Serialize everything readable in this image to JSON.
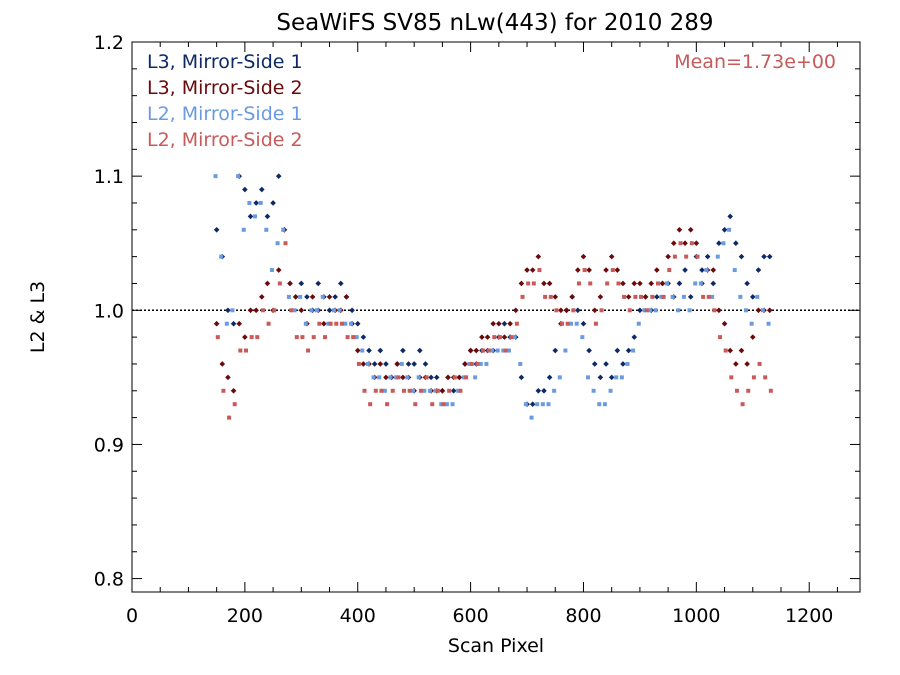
{
  "chart_data": {
    "type": "scatter",
    "title": "SeaWiFS SV85 nLw(443) for 2010 289",
    "xlabel": "Scan Pixel",
    "ylabel": "L2 & L3",
    "xlim": [
      0,
      1290
    ],
    "ylim": [
      0.79,
      1.2
    ],
    "xticks": [
      0,
      200,
      400,
      600,
      800,
      1000,
      1200
    ],
    "xtick_labels": [
      "0",
      "200",
      "400",
      "600",
      "800",
      "1000",
      "1200"
    ],
    "yticks": [
      0.8,
      0.9,
      1.0,
      1.1,
      1.2
    ],
    "ytick_labels": [
      "0.8",
      "0.9",
      "1.0",
      "1.1",
      "1.2"
    ],
    "reference_line": 1.0,
    "grid": false,
    "legend_position": "top-left",
    "annotation": "Mean=1.73e+00",
    "annotation_color": "#c85a5a",
    "series": [
      {
        "name": "L3, Mirror-Side 1",
        "color": "#0d2a66",
        "marker": "diamond",
        "x": [
          150,
          160,
          170,
          180,
          190,
          200,
          210,
          220,
          230,
          240,
          250,
          260,
          270,
          280,
          290,
          300,
          310,
          320,
          330,
          340,
          350,
          360,
          370,
          380,
          390,
          400,
          410,
          420,
          430,
          440,
          450,
          460,
          470,
          480,
          490,
          500,
          510,
          520,
          530,
          540,
          550,
          560,
          570,
          580,
          590,
          600,
          610,
          620,
          630,
          640,
          650,
          660,
          670,
          680,
          690,
          700,
          710,
          720,
          730,
          740,
          750,
          760,
          770,
          780,
          790,
          800,
          810,
          820,
          830,
          840,
          850,
          860,
          870,
          880,
          890,
          900,
          910,
          920,
          930,
          940,
          950,
          960,
          970,
          980,
          990,
          1000,
          1010,
          1020,
          1030,
          1040,
          1050,
          1060,
          1070,
          1080,
          1090,
          1100,
          1110,
          1120,
          1130
        ],
        "y": [
          1.06,
          1.04,
          1.0,
          0.99,
          1.1,
          1.09,
          1.07,
          1.08,
          1.09,
          1.07,
          1.08,
          1.1,
          1.06,
          1.02,
          1.01,
          1.02,
          1.01,
          1.0,
          1.02,
          1.01,
          1.0,
          1.01,
          1.02,
          1.01,
          1.0,
          0.99,
          0.98,
          0.97,
          0.96,
          0.97,
          0.96,
          0.95,
          0.96,
          0.97,
          0.96,
          0.96,
          0.97,
          0.96,
          0.95,
          0.95,
          0.94,
          0.95,
          0.94,
          0.95,
          0.96,
          0.97,
          0.96,
          0.97,
          0.97,
          0.97,
          0.98,
          0.99,
          0.98,
          0.98,
          0.95,
          0.93,
          0.93,
          0.94,
          0.94,
          0.95,
          0.97,
          0.99,
          1.0,
          1.01,
          1.0,
          0.99,
          0.97,
          0.96,
          0.95,
          0.96,
          0.95,
          0.97,
          0.96,
          0.97,
          0.98,
          1.0,
          1.01,
          1.0,
          1.01,
          1.02,
          1.02,
          1.01,
          1.02,
          1.03,
          1.01,
          1.04,
          1.03,
          1.04,
          1.02,
          1.05,
          1.06,
          1.07,
          1.05,
          1.04,
          1.02,
          1.01,
          1.03,
          1.04,
          1.04
        ]
      },
      {
        "name": "L3, Mirror-Side 2",
        "color": "#6b0a0a",
        "marker": "diamond",
        "x": [
          150,
          160,
          170,
          180,
          190,
          200,
          210,
          220,
          230,
          240,
          250,
          260,
          270,
          280,
          290,
          300,
          310,
          320,
          330,
          340,
          350,
          360,
          370,
          380,
          390,
          400,
          410,
          420,
          430,
          440,
          450,
          460,
          470,
          480,
          490,
          500,
          510,
          520,
          530,
          540,
          550,
          560,
          570,
          580,
          590,
          600,
          610,
          620,
          630,
          640,
          650,
          660,
          670,
          680,
          690,
          700,
          710,
          720,
          730,
          740,
          750,
          760,
          770,
          780,
          790,
          800,
          810,
          820,
          830,
          840,
          850,
          860,
          870,
          880,
          890,
          900,
          910,
          920,
          930,
          940,
          950,
          960,
          970,
          980,
          990,
          1000,
          1010,
          1020,
          1030,
          1040,
          1050,
          1060,
          1070,
          1080,
          1090,
          1100,
          1110,
          1120,
          1130
        ],
        "y": [
          0.99,
          0.96,
          0.95,
          0.94,
          0.99,
          0.98,
          1.0,
          1.0,
          1.01,
          1.02,
          1.0,
          1.03,
          1.06,
          1.02,
          1.01,
          1.0,
          0.99,
          1.01,
          1.0,
          0.99,
          1.01,
          1.0,
          1.0,
          1.01,
          0.99,
          0.97,
          0.96,
          0.96,
          0.95,
          0.96,
          0.95,
          0.95,
          0.96,
          0.95,
          0.95,
          0.94,
          0.95,
          0.95,
          0.94,
          0.94,
          0.94,
          0.95,
          0.95,
          0.95,
          0.96,
          0.97,
          0.97,
          0.98,
          0.98,
          0.99,
          0.99,
          0.98,
          0.99,
          1.0,
          1.02,
          1.03,
          1.03,
          1.04,
          1.02,
          1.02,
          1.01,
          1.0,
          1.0,
          1.01,
          1.03,
          1.04,
          1.03,
          1.0,
          1.01,
          1.03,
          1.04,
          1.03,
          1.02,
          1.01,
          1.02,
          1.02,
          1.01,
          1.02,
          1.03,
          1.02,
          1.04,
          1.05,
          1.06,
          1.05,
          1.06,
          1.05,
          1.02,
          1.03,
          1.03,
          1.0,
          0.99,
          0.97,
          0.96,
          0.97,
          0.96,
          0.98,
          1.0,
          1.0,
          1.0
        ]
      },
      {
        "name": "L2, Mirror-Side 1",
        "color": "#6a9be0",
        "marker": "square",
        "x": [
          148,
          158,
          168,
          178,
          188,
          198,
          208,
          218,
          228,
          238,
          248,
          258,
          268,
          278,
          288,
          298,
          308,
          318,
          328,
          338,
          348,
          358,
          368,
          378,
          388,
          398,
          408,
          418,
          428,
          438,
          448,
          458,
          468,
          478,
          488,
          498,
          508,
          518,
          528,
          538,
          548,
          558,
          568,
          578,
          588,
          598,
          608,
          618,
          628,
          638,
          648,
          658,
          668,
          678,
          688,
          698,
          708,
          718,
          728,
          738,
          748,
          758,
          768,
          778,
          788,
          798,
          808,
          818,
          828,
          838,
          848,
          858,
          868,
          878,
          888,
          898,
          908,
          918,
          928,
          938,
          948,
          958,
          968,
          978,
          988,
          998,
          1008,
          1018,
          1028,
          1038,
          1048,
          1058,
          1068,
          1078,
          1088,
          1098,
          1108,
          1118,
          1128
        ],
        "y": [
          1.1,
          1.04,
          0.99,
          1.0,
          1.1,
          1.06,
          1.08,
          1.07,
          1.08,
          1.06,
          1.03,
          1.05,
          1.06,
          1.01,
          1.0,
          1.01,
          0.99,
          1.0,
          1.0,
          1.01,
          0.99,
          1.0,
          1.0,
          0.99,
          0.99,
          0.98,
          0.97,
          0.96,
          0.95,
          0.95,
          0.94,
          0.95,
          0.95,
          0.96,
          0.95,
          0.94,
          0.95,
          0.94,
          0.94,
          0.94,
          0.93,
          0.93,
          0.93,
          0.94,
          0.95,
          0.96,
          0.95,
          0.96,
          0.96,
          0.97,
          0.97,
          0.97,
          0.97,
          0.98,
          0.96,
          0.93,
          0.92,
          0.93,
          0.93,
          0.93,
          0.94,
          0.95,
          0.97,
          0.99,
          0.99,
          0.98,
          0.95,
          0.94,
          0.93,
          0.93,
          0.94,
          0.95,
          0.95,
          0.96,
          0.97,
          0.99,
          1.0,
          1.0,
          1.0,
          1.01,
          1.02,
          1.01,
          1.0,
          1.01,
          1.0,
          1.02,
          1.02,
          1.03,
          1.01,
          1.04,
          1.05,
          1.06,
          1.03,
          1.01,
          1.0,
          0.99,
          1.01,
          1.0,
          0.99
        ]
      },
      {
        "name": "L2, Mirror-Side 2",
        "color": "#c85a5a",
        "marker": "square",
        "x": [
          152,
          162,
          172,
          182,
          192,
          202,
          212,
          222,
          232,
          242,
          252,
          262,
          272,
          282,
          292,
          302,
          312,
          322,
          332,
          342,
          352,
          362,
          372,
          382,
          392,
          402,
          412,
          422,
          432,
          442,
          452,
          462,
          472,
          482,
          492,
          502,
          512,
          522,
          532,
          542,
          552,
          562,
          572,
          582,
          592,
          602,
          612,
          622,
          632,
          642,
          652,
          662,
          672,
          682,
          692,
          702,
          712,
          722,
          732,
          742,
          752,
          762,
          772,
          782,
          792,
          802,
          812,
          822,
          832,
          842,
          852,
          862,
          872,
          882,
          892,
          902,
          912,
          922,
          932,
          942,
          952,
          962,
          972,
          982,
          992,
          1002,
          1012,
          1022,
          1032,
          1042,
          1052,
          1062,
          1072,
          1082,
          1092,
          1102,
          1112,
          1122,
          1132
        ],
        "y": [
          0.98,
          0.94,
          0.92,
          0.93,
          0.97,
          0.97,
          0.98,
          0.98,
          1.0,
          0.99,
          1.0,
          1.02,
          1.05,
          1.0,
          0.98,
          0.98,
          0.97,
          0.98,
          0.99,
          0.98,
          0.99,
          0.99,
          0.99,
          0.98,
          0.98,
          0.96,
          0.94,
          0.93,
          0.94,
          0.94,
          0.93,
          0.94,
          0.95,
          0.94,
          0.94,
          0.93,
          0.94,
          0.95,
          0.93,
          0.94,
          0.93,
          0.94,
          0.95,
          0.94,
          0.95,
          0.96,
          0.96,
          0.97,
          0.97,
          0.98,
          0.98,
          0.97,
          0.98,
          0.99,
          1.01,
          1.02,
          1.02,
          1.03,
          1.01,
          1.01,
          1.0,
          0.99,
          0.99,
          1.0,
          1.02,
          1.03,
          1.02,
          0.99,
          1.0,
          1.02,
          1.03,
          1.02,
          1.01,
          1.0,
          1.01,
          1.01,
          1.0,
          1.01,
          1.02,
          1.01,
          1.03,
          1.04,
          1.05,
          1.04,
          1.05,
          1.04,
          1.01,
          1.01,
          1.0,
          0.98,
          0.97,
          0.95,
          0.94,
          0.93,
          0.94,
          0.95,
          0.96,
          0.95,
          0.94
        ]
      }
    ]
  }
}
